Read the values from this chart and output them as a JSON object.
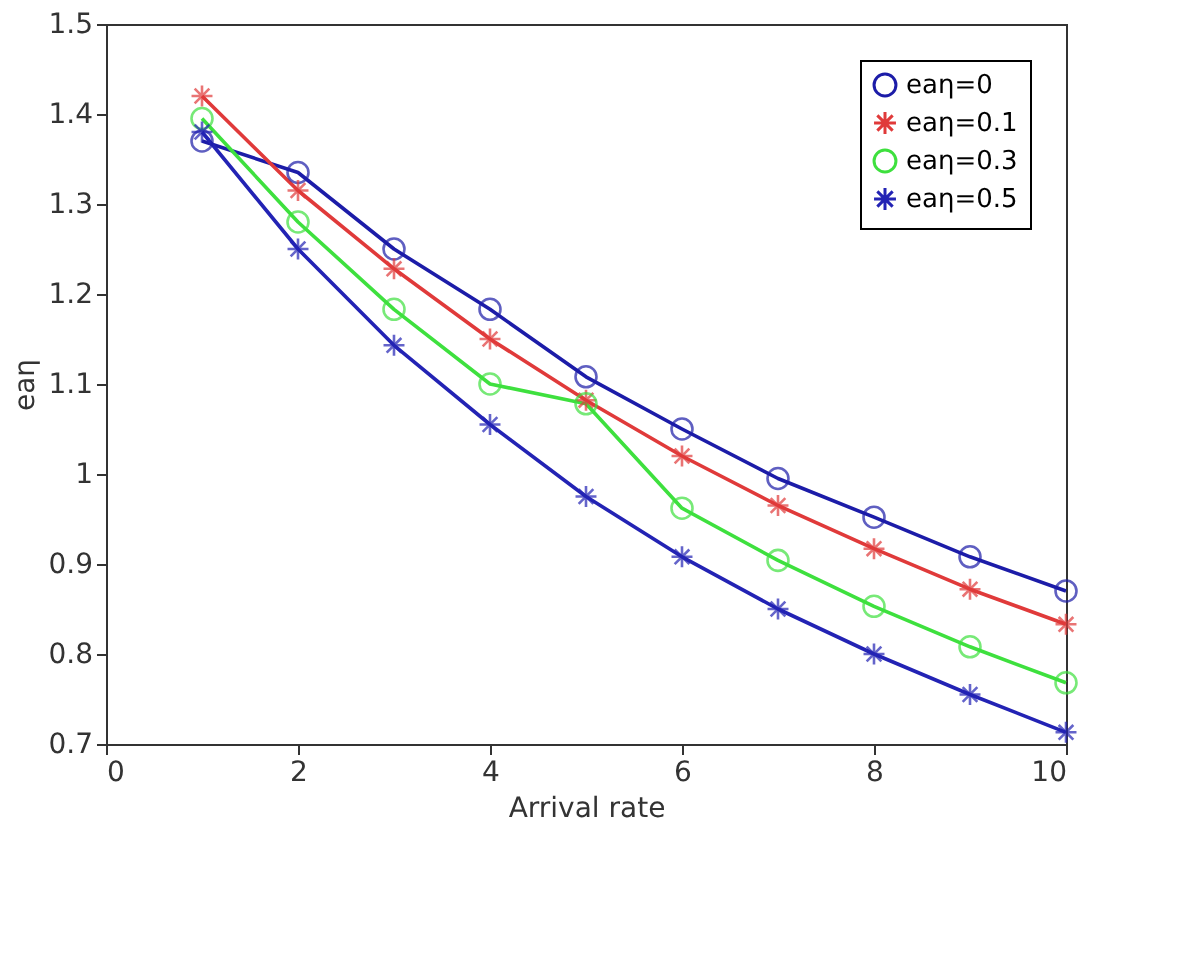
{
  "chart_data": {
    "type": "line",
    "xlabel": "Arrival rate",
    "ylabel": "eaη",
    "x": [
      1,
      2,
      3,
      4,
      5,
      6,
      7,
      8,
      9,
      10
    ],
    "series": [
      {
        "name": "eaη=0",
        "color": "#1c1ca8",
        "marker": "circle",
        "values": [
          1.37,
          1.335,
          1.25,
          1.183,
          1.108,
          1.05,
          0.995,
          0.952,
          0.908,
          0.87
        ]
      },
      {
        "name": "eaη=0.1",
        "color": "#e03a3a",
        "marker": "cross",
        "values": [
          1.42,
          1.315,
          1.228,
          1.15,
          1.082,
          1.02,
          0.965,
          0.917,
          0.872,
          0.833
        ]
      },
      {
        "name": "eaη=0.3",
        "color": "#3ee03e",
        "marker": "circle",
        "values": [
          1.395,
          1.28,
          1.183,
          1.1,
          1.078,
          0.962,
          0.904,
          0.853,
          0.808,
          0.768
        ]
      },
      {
        "name": "eaη=0.5",
        "color": "#2323b4",
        "marker": "cross",
        "values": [
          1.38,
          1.25,
          1.143,
          1.055,
          0.975,
          0.908,
          0.85,
          0.8,
          0.755,
          0.713
        ]
      }
    ],
    "xlim": [
      0,
      10
    ],
    "xticks": [
      0,
      2,
      4,
      6,
      8,
      10
    ],
    "ylim": [
      0.7,
      1.5
    ],
    "yticks": [
      0.7,
      0.8,
      0.9,
      {
        "value": 1,
        "label": "1"
      },
      1.1,
      1.2,
      1.3,
      1.4,
      1.5
    ],
    "legend": "top right",
    "grid": false,
    "line_style": "solid"
  }
}
